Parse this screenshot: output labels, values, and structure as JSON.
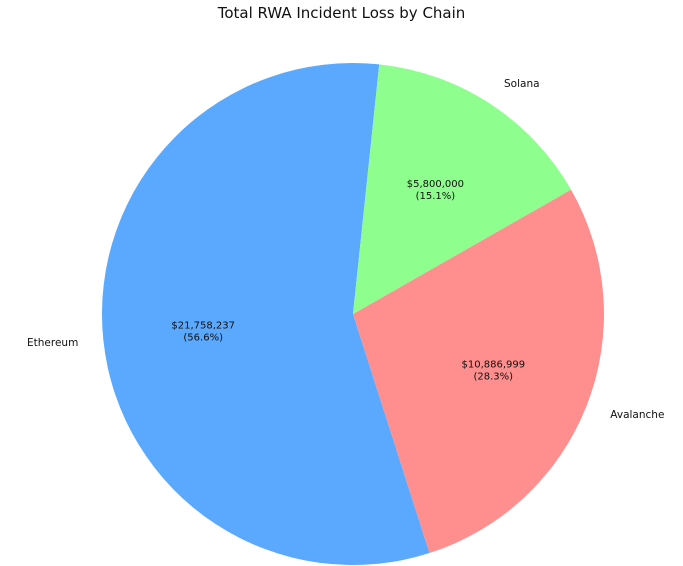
{
  "chart_data": {
    "type": "pie",
    "title": "Total RWA Incident Loss by Chain",
    "slices": [
      {
        "label": "Ethereum",
        "value": 21758237,
        "value_text": "$21,758,237",
        "percent_text": "(56.6%)",
        "color": "#5aa9fe"
      },
      {
        "label": "Avalanche",
        "value": 10886999,
        "value_text": "$10,886,999",
        "percent_text": "(28.3%)",
        "color": "#fe8f8e"
      },
      {
        "label": "Solana",
        "value": 5800000,
        "value_text": "$5,800,000",
        "percent_text": "(15.1%)",
        "color": "#8efe8e"
      }
    ],
    "start_angle_deg": 84,
    "direction": "counterclockwise",
    "legend": "none"
  }
}
